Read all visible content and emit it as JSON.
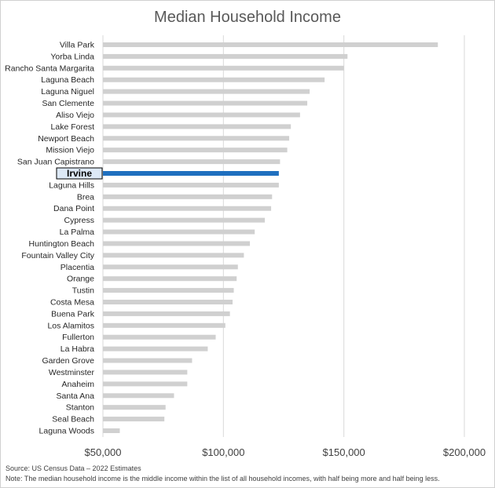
{
  "chart_data": {
    "type": "bar",
    "orientation": "horizontal",
    "title": "Median Household Income",
    "categories": [
      "Villa Park",
      "Yorba Linda",
      "Rancho Santa Margarita",
      "Laguna Beach",
      "Laguna Niguel",
      "San Clemente",
      "Aliso Viejo",
      "Lake Forest",
      "Newport Beach",
      "Mission Viejo",
      "San Juan Capistrano",
      "Irvine",
      "Laguna Hills",
      "Brea",
      "Dana Point",
      "Cypress",
      "La Palma",
      "Huntington Beach",
      "Fountain Valley City",
      "Placentia",
      "Orange",
      "Tustin",
      "Costa Mesa",
      "Buena Park",
      "Los Alamitos",
      "Fullerton",
      "La Habra",
      "Garden Grove",
      "Westminster",
      "Anaheim",
      "Santa Ana",
      "Stanton",
      "Seal Beach",
      "Laguna Woods"
    ],
    "values": [
      189000,
      151500,
      150000,
      142000,
      135800,
      134800,
      131800,
      128000,
      127300,
      126500,
      123500,
      123000,
      123000,
      120200,
      119800,
      117200,
      113000,
      111000,
      108500,
      106000,
      105500,
      104300,
      103800,
      102700,
      100800,
      96800,
      93500,
      87000,
      85000,
      85000,
      79500,
      76000,
      75500,
      57000
    ],
    "highlight": "Irvine",
    "xlim": [
      50000,
      200000
    ],
    "xticks": [
      50000,
      100000,
      150000,
      200000
    ],
    "xtick_labels": [
      "$50,000",
      "$100,000",
      "$150,000",
      "$200,000"
    ],
    "xlabel": "",
    "ylabel": "",
    "grid": true,
    "colors": {
      "bar": "#d0d0d0",
      "highlight": "#1f6fbf",
      "grid": "#d9d9d9",
      "highlight_label_bg": "#dde9f6"
    }
  },
  "footnotes": {
    "source": "Source: US Census Data – 2022 Estimates",
    "note": "Note: The median household income is the middle income within the list of all household incomes, with half being more and half being less."
  }
}
